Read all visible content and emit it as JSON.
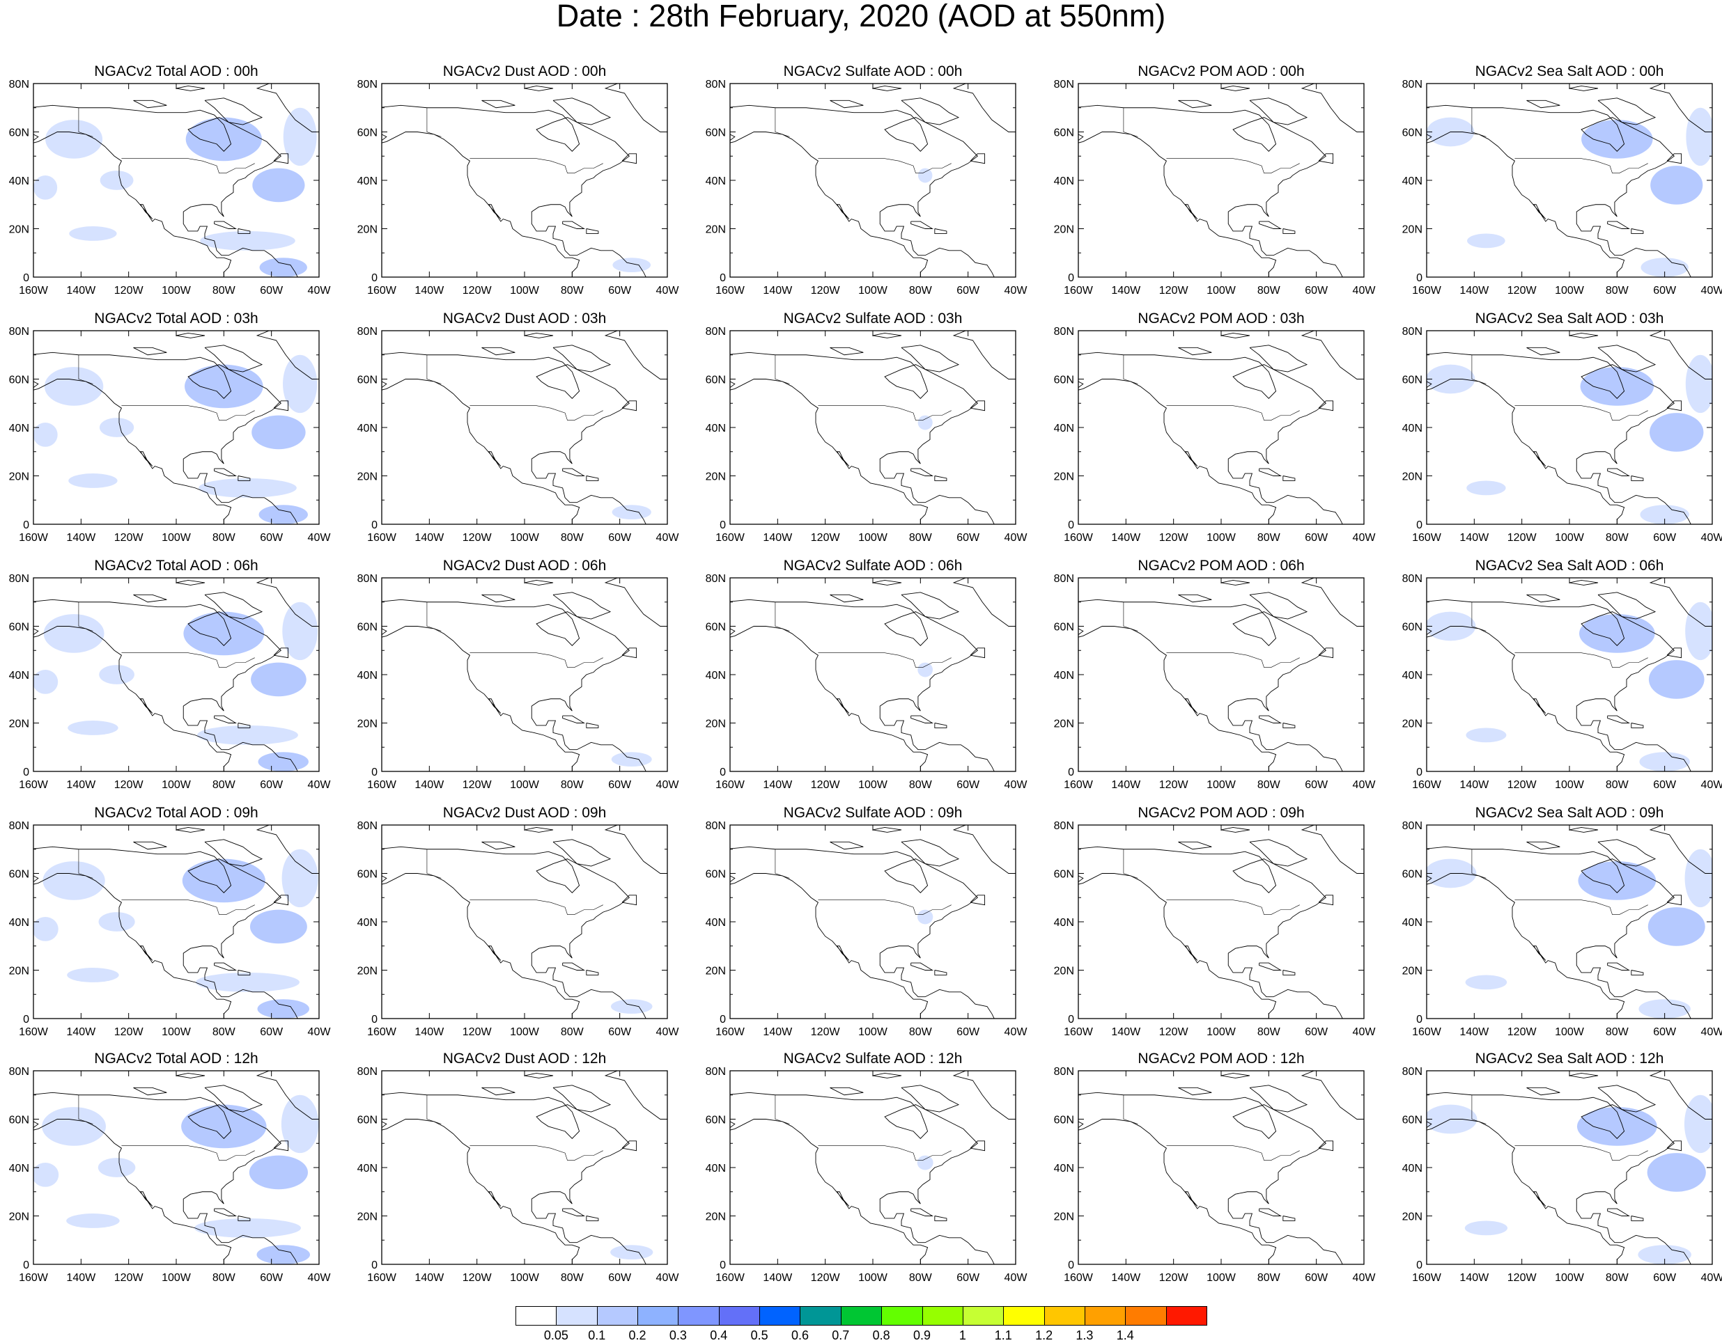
{
  "title": "Date : 28th February, 2020 (AOD at 550nm)",
  "lat_labels": [
    "80N",
    "60N",
    "40N",
    "20N",
    "0"
  ],
  "lon_labels": [
    "160W",
    "140W",
    "120W",
    "100W",
    "80W",
    "60W",
    "40W"
  ],
  "panel_titles": [
    [
      "NGACv2 Total AOD : 00h",
      "NGACv2 Dust AOD : 00h",
      "NGACv2 Sulfate AOD : 00h",
      "NGACv2 POM AOD : 00h",
      "NGACv2 Sea Salt AOD : 00h"
    ],
    [
      "NGACv2 Total AOD : 03h",
      "NGACv2 Dust AOD : 03h",
      "NGACv2 Sulfate AOD : 03h",
      "NGACv2 POM AOD : 03h",
      "NGACv2 Sea Salt AOD : 03h"
    ],
    [
      "NGACv2 Total AOD : 06h",
      "NGACv2 Dust AOD : 06h",
      "NGACv2 Sulfate AOD : 06h",
      "NGACv2 POM AOD : 06h",
      "NGACv2 Sea Salt AOD : 06h"
    ],
    [
      "NGACv2 Total AOD : 09h",
      "NGACv2 Dust AOD : 09h",
      "NGACv2 Sulfate AOD : 09h",
      "NGACv2 POM AOD : 09h",
      "NGACv2 Sea Salt  AOD : 09h"
    ],
    [
      "NGACv2 Total AOD  : 12h",
      "NGACv2 Dust AOD : 12h",
      "NGACv2 Sulfate AOD : 12h",
      "NGACv2 POM  AOD : 12h",
      "NGACv2 Sea Salt  AOD : 12h"
    ]
  ],
  "colorbar": {
    "colors": [
      "#ffffff",
      "#d6e2ff",
      "#b5c9ff",
      "#8eb2ff",
      "#7f96ff",
      "#6370f8",
      "#0063ff",
      "#009696",
      "#00c633",
      "#63ff00",
      "#96ff00",
      "#c6ff33",
      "#ffff00",
      "#ffc600",
      "#ffa000",
      "#ff7c00",
      "#ff1900"
    ],
    "labels": [
      "0.05",
      "0.1",
      "0.2",
      "0.3",
      "0.4",
      "0.5",
      "0.6",
      "0.7",
      "0.8",
      "0.9",
      "1",
      "1.1",
      "1.2",
      "1.3",
      "1.4"
    ]
  },
  "aod_fields": {
    "total": [
      {
        "lon": -143,
        "lat": 57,
        "rlon": 12,
        "rlat": 8,
        "level": 1
      },
      {
        "lon": -80,
        "lat": 57,
        "rlon": 16,
        "rlat": 9,
        "level": 2
      },
      {
        "lon": -57,
        "lat": 38,
        "rlon": 11,
        "rlat": 7,
        "level": 2
      },
      {
        "lon": -48,
        "lat": 58,
        "rlon": 7,
        "rlat": 12,
        "level": 1
      },
      {
        "lon": -155,
        "lat": 37,
        "rlon": 5,
        "rlat": 5,
        "level": 1
      },
      {
        "lon": -135,
        "lat": 18,
        "rlon": 10,
        "rlat": 3,
        "level": 1
      },
      {
        "lon": -70,
        "lat": 15,
        "rlon": 20,
        "rlat": 4,
        "level": 1
      },
      {
        "lon": -55,
        "lat": 4,
        "rlon": 10,
        "rlat": 4,
        "level": 2
      },
      {
        "lon": -125,
        "lat": 40,
        "rlon": 7,
        "rlat": 4,
        "level": 1
      }
    ],
    "dust": [
      {
        "lon": -55,
        "lat": 5,
        "rlon": 8,
        "rlat": 3,
        "level": 1
      }
    ],
    "sulfate": [
      {
        "lon": -78,
        "lat": 42,
        "rlon": 3,
        "rlat": 3,
        "level": 1
      }
    ],
    "pom": [],
    "seasalt": [
      {
        "lon": -150,
        "lat": 60,
        "rlon": 10,
        "rlat": 6,
        "level": 1
      },
      {
        "lon": -80,
        "lat": 57,
        "rlon": 15,
        "rlat": 8,
        "level": 2
      },
      {
        "lon": -55,
        "lat": 38,
        "rlon": 11,
        "rlat": 8,
        "level": 2
      },
      {
        "lon": -45,
        "lat": 58,
        "rlon": 6,
        "rlat": 12,
        "level": 1
      },
      {
        "lon": -60,
        "lat": 4,
        "rlon": 10,
        "rlat": 4,
        "level": 1
      },
      {
        "lon": -135,
        "lat": 15,
        "rlon": 8,
        "rlat": 3,
        "level": 1
      }
    ]
  }
}
